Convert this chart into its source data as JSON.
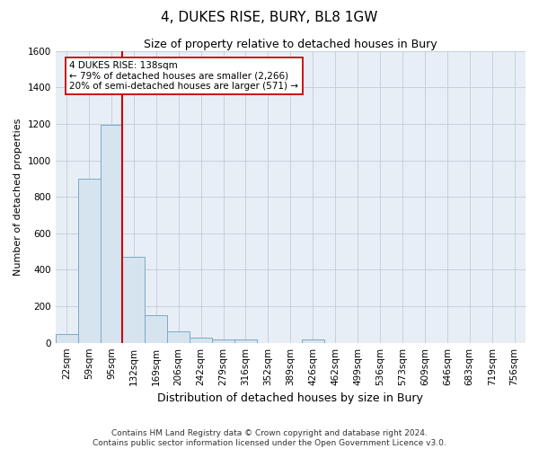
{
  "title": "4, DUKES RISE, BURY, BL8 1GW",
  "subtitle": "Size of property relative to detached houses in Bury",
  "xlabel": "Distribution of detached houses by size in Bury",
  "ylabel": "Number of detached properties",
  "footer": "Contains HM Land Registry data © Crown copyright and database right 2024.\nContains public sector information licensed under the Open Government Licence v3.0.",
  "bin_labels": [
    "22sqm",
    "59sqm",
    "95sqm",
    "132sqm",
    "169sqm",
    "206sqm",
    "242sqm",
    "279sqm",
    "316sqm",
    "352sqm",
    "389sqm",
    "426sqm",
    "462sqm",
    "499sqm",
    "536sqm",
    "573sqm",
    "609sqm",
    "646sqm",
    "683sqm",
    "719sqm",
    "756sqm"
  ],
  "bar_values": [
    50,
    900,
    1195,
    470,
    150,
    60,
    30,
    20,
    20,
    0,
    0,
    20,
    0,
    0,
    0,
    0,
    0,
    0,
    0,
    0,
    0
  ],
  "bar_color": "#d6e4f0",
  "bar_edgecolor": "#7aaac8",
  "vline_x_idx": 3,
  "vline_color": "#cc0000",
  "annotation_line1": "4 DUKES RISE: 138sqm",
  "annotation_line2": "← 79% of detached houses are smaller (2,266)",
  "annotation_line3": "20% of semi-detached houses are larger (571) →",
  "annotation_box_facecolor": "#ffffff",
  "annotation_box_edgecolor": "#cc0000",
  "ylim": [
    0,
    1600
  ],
  "yticks": [
    0,
    200,
    400,
    600,
    800,
    1000,
    1200,
    1400,
    1600
  ],
  "bg_color": "#ffffff",
  "plot_bg_color": "#e8eef5",
  "grid_color": "#c0ccd8",
  "title_fontsize": 11,
  "subtitle_fontsize": 9,
  "xlabel_fontsize": 9,
  "ylabel_fontsize": 8,
  "tick_fontsize": 7.5,
  "footer_fontsize": 6.5
}
